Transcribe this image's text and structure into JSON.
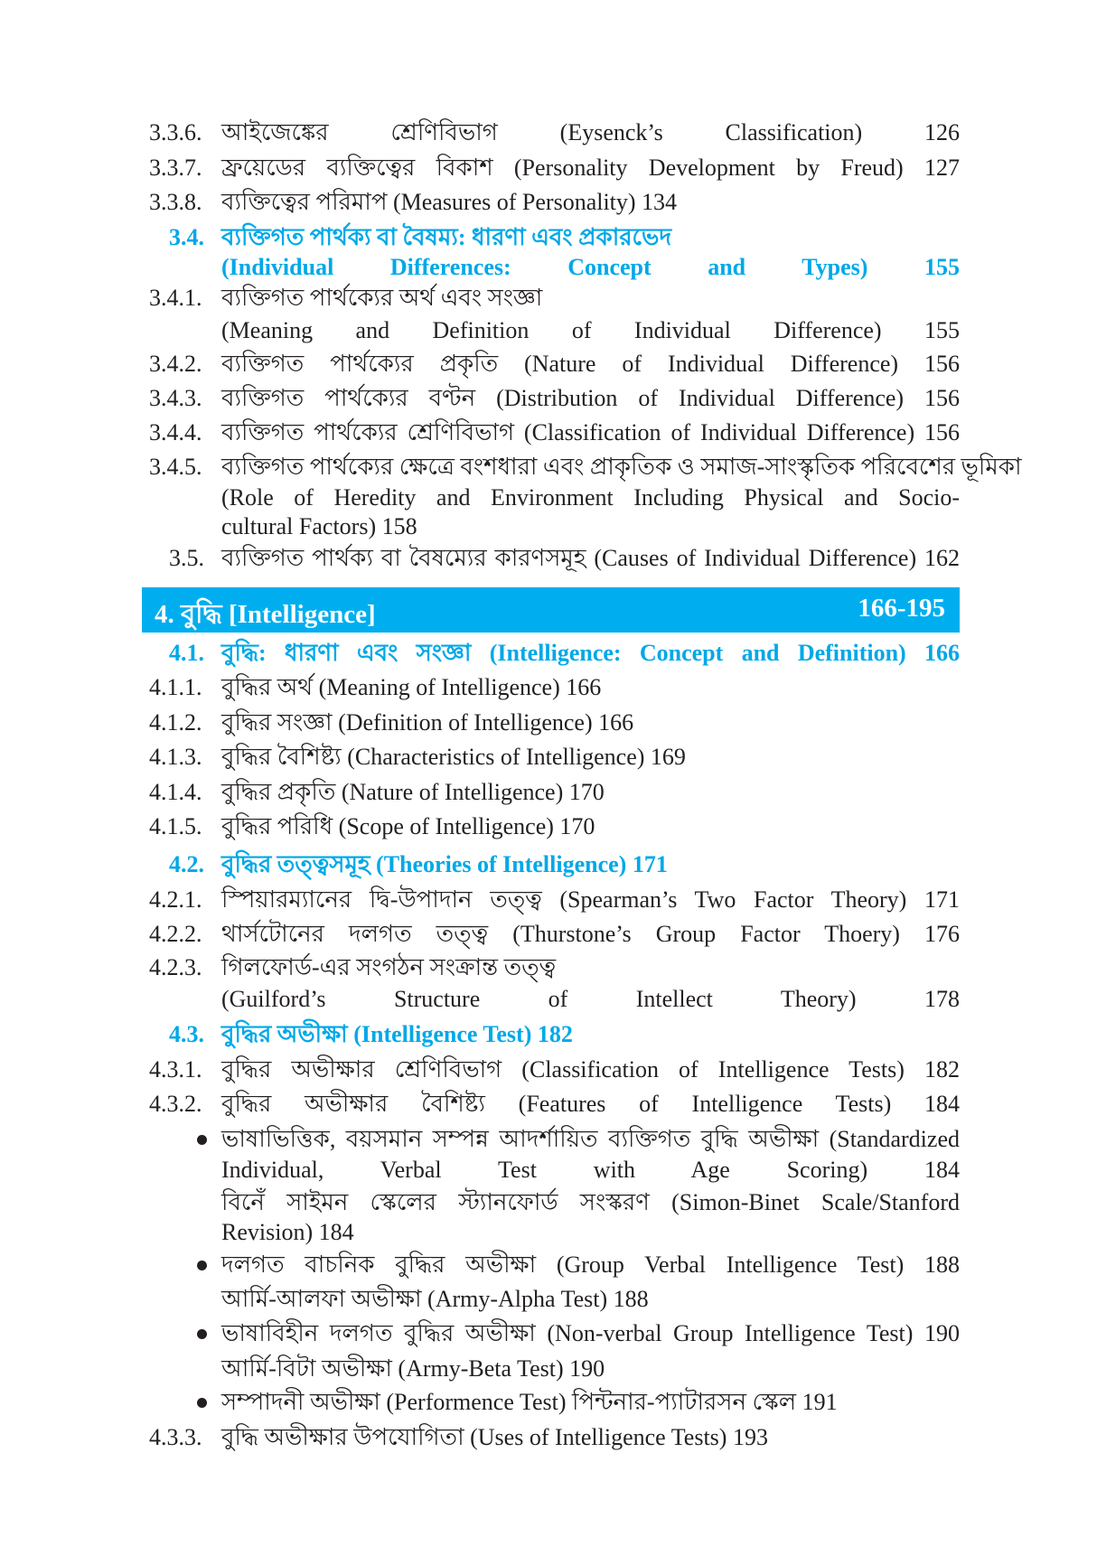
{
  "entries": [
    {
      "num": "3.3.6.",
      "lines": [
        "আইজেঙ্কের শ্রেণিবিভাগ (Eysenck’s Classification) 126"
      ]
    },
    {
      "num": "3.3.7.",
      "lines": [
        "ফ্রয়েডের ব্যক্তিত্বের বিকাশ (Personality Development by Freud) 127"
      ]
    },
    {
      "num": "3.3.8.",
      "lines": [
        "ব্যক্তিত্বের পরিমাপ (Measures of Personality) 134"
      ]
    },
    {
      "num": "3.4.",
      "heading": true,
      "lines": [
        "ব্যক্তিগত পার্থক্য বা বৈষম্য: ধারণা এবং প্রকারভেদ",
        "(Individual Differences: Concept and Types) 155"
      ]
    },
    {
      "num": "3.4.1.",
      "lines": [
        "ব্যক্তিগত পার্থক্যের অর্থ এবং সংজ্ঞা",
        "(Meaning and Definition of Individual Difference) 155"
      ]
    },
    {
      "num": "3.4.2.",
      "lines": [
        "ব্যক্তিগত পার্থক্যের প্রকৃতি (Nature of Individual Difference) 156"
      ]
    },
    {
      "num": "3.4.3.",
      "lines": [
        "ব্যক্তিগত পার্থক্যের বণ্টন (Distribution of Individual Difference) 156"
      ]
    },
    {
      "num": "3.4.4.",
      "lines": [
        "ব্যক্তিগত পার্থক্যের শ্রেণিবিভাগ (Classification of Individual Difference) 156"
      ]
    },
    {
      "num": "3.4.5.",
      "lines": [
        "ব্যক্তিগত পার্থক্যের ক্ষেত্রে বংশধারা এবং প্রাকৃতিক ও সমাজ-সাংস্কৃতিক পরিবেশের ভূমিকা",
        "(Role of Heredity and Environment Including Physical and Socio-",
        "cultural Factors) 158"
      ]
    },
    {
      "num": "3.5.",
      "indent": true,
      "lines": [
        "ব্যক্তিগত পার্থক্য বা বৈষম্যের কারণসমূহ (Causes of Individual Difference) 162"
      ]
    },
    {
      "num": "4.1.",
      "heading": true,
      "lines": [
        "বুদ্ধি: ধারণা এবং সংজ্ঞা (Intelligence: Concept and Definition) 166"
      ]
    },
    {
      "num": "4.1.1.",
      "lines": [
        "বুদ্ধির অর্থ (Meaning of Intelligence) 166"
      ]
    },
    {
      "num": "4.1.2.",
      "lines": [
        "বুদ্ধির সংজ্ঞা (Definition of Intelligence) 166"
      ]
    },
    {
      "num": "4.1.3.",
      "lines": [
        "বুদ্ধির বৈশিষ্ট্য (Characteristics of Intelligence) 169"
      ]
    },
    {
      "num": "4.1.4.",
      "lines": [
        "বুদ্ধির প্রকৃতি (Nature of Intelligence) 170"
      ]
    },
    {
      "num": "4.1.5.",
      "lines": [
        "বুদ্ধির পরিধি (Scope of Intelligence) 170"
      ]
    },
    {
      "num": "4.2.",
      "heading": true,
      "lines": [
        "বুদ্ধির তত্ত্বসমূহ (Theories of Intelligence) 171"
      ]
    },
    {
      "num": "4.2.1.",
      "lines": [
        "স্পিয়ারম্যানের দ্বি-উপাদান তত্ত্ব (Spearman’s Two Factor Theory) 171"
      ]
    },
    {
      "num": "4.2.2.",
      "lines": [
        "থার্সটোনের দলগত তত্ত্ব (Thurstone’s Group Factor Thoery) 176"
      ]
    },
    {
      "num": "4.2.3.",
      "lines": [
        "গিলফোর্ড-এর সংগঠন সংক্রান্ত তত্ত্ব",
        "(Guilford’s Structure of Intellect Theory) 178"
      ]
    },
    {
      "num": "4.3.",
      "heading": true,
      "lines": [
        "বুদ্ধির অভীক্ষা (Intelligence Test) 182"
      ]
    },
    {
      "num": "4.3.1.",
      "lines": [
        "বুদ্ধির অভীক্ষার শ্রেণিবিভাগ (Classification of Intelligence Tests) 182"
      ]
    },
    {
      "num": "4.3.2.",
      "lines": [
        "বুদ্ধির অভীক্ষার বৈশিষ্ট্য (Features of Intelligence Tests) 184"
      ]
    },
    {
      "bullet": true,
      "lines": [
        "ভাষাভিত্তিক, বয়সমান সম্পন্ন আদর্শায়িত ব্যক্তিগত বুদ্ধি অভীক্ষা (Standardized",
        "Individual, Verbal Test with Age Scoring) 184",
        "বিনেঁ সাইমন স্কেলের স্ট্যানফোর্ড সংস্করণ (Simon-Binet Scale/Stanford",
        "Revision) 184"
      ]
    },
    {
      "bullet": true,
      "lines": [
        "দলগত বাচনিক বুদ্ধির অভীক্ষা (Group Verbal Intelligence Test) 188",
        "আর্মি-আলফা অভীক্ষা (Army-Alpha Test) 188"
      ]
    },
    {
      "bullet": true,
      "lines": [
        "ভাষাবিহীন দলগত বুদ্ধির অভীক্ষা (Non-verbal Group Intelligence Test) 190",
        "আর্মি-বিটা অভীক্ষা (Army-Beta Test) 190"
      ]
    },
    {
      "bullet": true,
      "lines": [
        "সম্পাদনী অভীক্ষা (Performence Test) পিন্টনার-প্যাটারসন স্কেল 191"
      ]
    },
    {
      "num": "4.3.3.",
      "lines": [
        "বুদ্ধি অভীক্ষার উপযোগিতা (Uses of Intelligence Tests) 193"
      ]
    }
  ],
  "chapter": {
    "title": "4. বুদ্ধি [Intelligence]",
    "pages": "166-195"
  },
  "colors": {
    "accent": "#00aeef",
    "text": "#231f20"
  }
}
